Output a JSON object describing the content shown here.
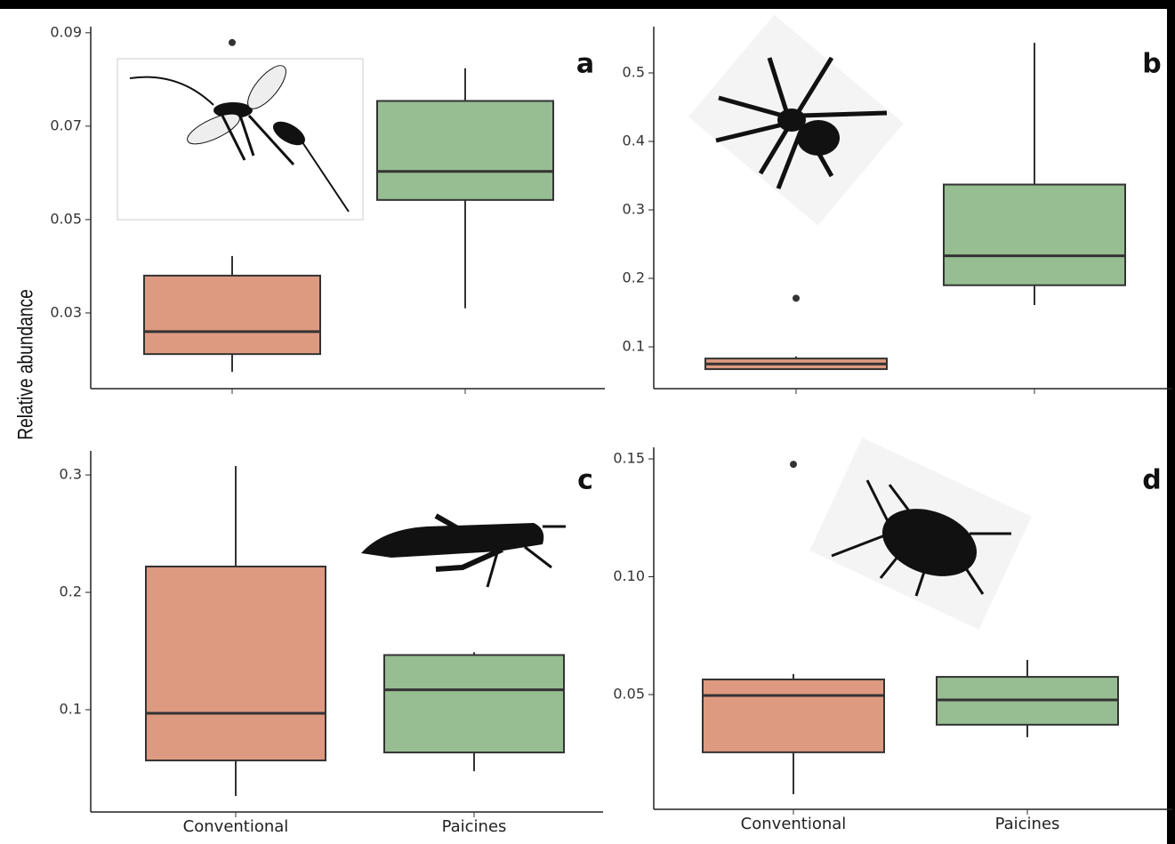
{
  "chart_data": [
    {
      "type": "box",
      "label": "a",
      "ylabel": "Relative abundance",
      "categories": [
        null,
        null
      ],
      "colors": [
        "#de9a80",
        "#97bd92"
      ],
      "boxes": [
        {
          "low": 0.0174,
          "q1": 0.0212,
          "median": 0.026,
          "q3": 0.038,
          "high": 0.0422,
          "outliers": [
            0.0879
          ]
        },
        {
          "low": 0.031,
          "q1": 0.0542,
          "median": 0.0603,
          "q3": 0.0754,
          "high": 0.0824,
          "outliers": []
        }
      ],
      "ylim": [
        0.0138,
        0.0913
      ],
      "yticks": [
        0.03,
        0.05,
        0.07,
        0.09
      ]
    },
    {
      "type": "box",
      "label": "b",
      "categories": [
        null,
        null
      ],
      "colors": [
        "#de9a80",
        "#97bd92"
      ],
      "boxes": [
        {
          "low": 0.0675,
          "q1": 0.0675,
          "median": 0.075,
          "q3": 0.083,
          "high": 0.086,
          "outliers": [
            0.171
          ]
        },
        {
          "low": 0.161,
          "q1": 0.19,
          "median": 0.233,
          "q3": 0.337,
          "high": 0.544,
          "outliers": []
        }
      ],
      "ylim": [
        0.039,
        0.5675
      ],
      "yticks": [
        0.1,
        0.2,
        0.3,
        0.4,
        0.5
      ]
    },
    {
      "type": "box",
      "label": "c",
      "categories": [
        "Conventional",
        "Paicines"
      ],
      "colors": [
        "#de9a80",
        "#97bd92"
      ],
      "boxes": [
        {
          "low": 0.0265,
          "q1": 0.0568,
          "median": 0.097,
          "q3": 0.222,
          "high": 0.3076,
          "outliers": []
        },
        {
          "low": 0.0477,
          "q1": 0.0636,
          "median": 0.117,
          "q3": 0.1466,
          "high": 0.149,
          "outliers": []
        }
      ],
      "ylim": [
        0.0129,
        0.3205
      ],
      "yticks": [
        0.1,
        0.2,
        0.3
      ]
    },
    {
      "type": "box",
      "label": "d",
      "categories": [
        "Conventional",
        "Paicines"
      ],
      "colors": [
        "#de9a80",
        "#97bd92"
      ],
      "boxes": [
        {
          "low": 0.0077,
          "q1": 0.0255,
          "median": 0.0496,
          "q3": 0.0564,
          "high": 0.0587,
          "outliers": [
            0.1477
          ]
        },
        {
          "low": 0.0319,
          "q1": 0.0372,
          "median": 0.0477,
          "q3": 0.0575,
          "high": 0.0647,
          "outliers": []
        }
      ],
      "ylim": [
        0.0013,
        0.1549
      ],
      "yticks": [
        0.05,
        {
          "value": 0.1,
          "label": "0.10"
        },
        0.15
      ]
    }
  ]
}
